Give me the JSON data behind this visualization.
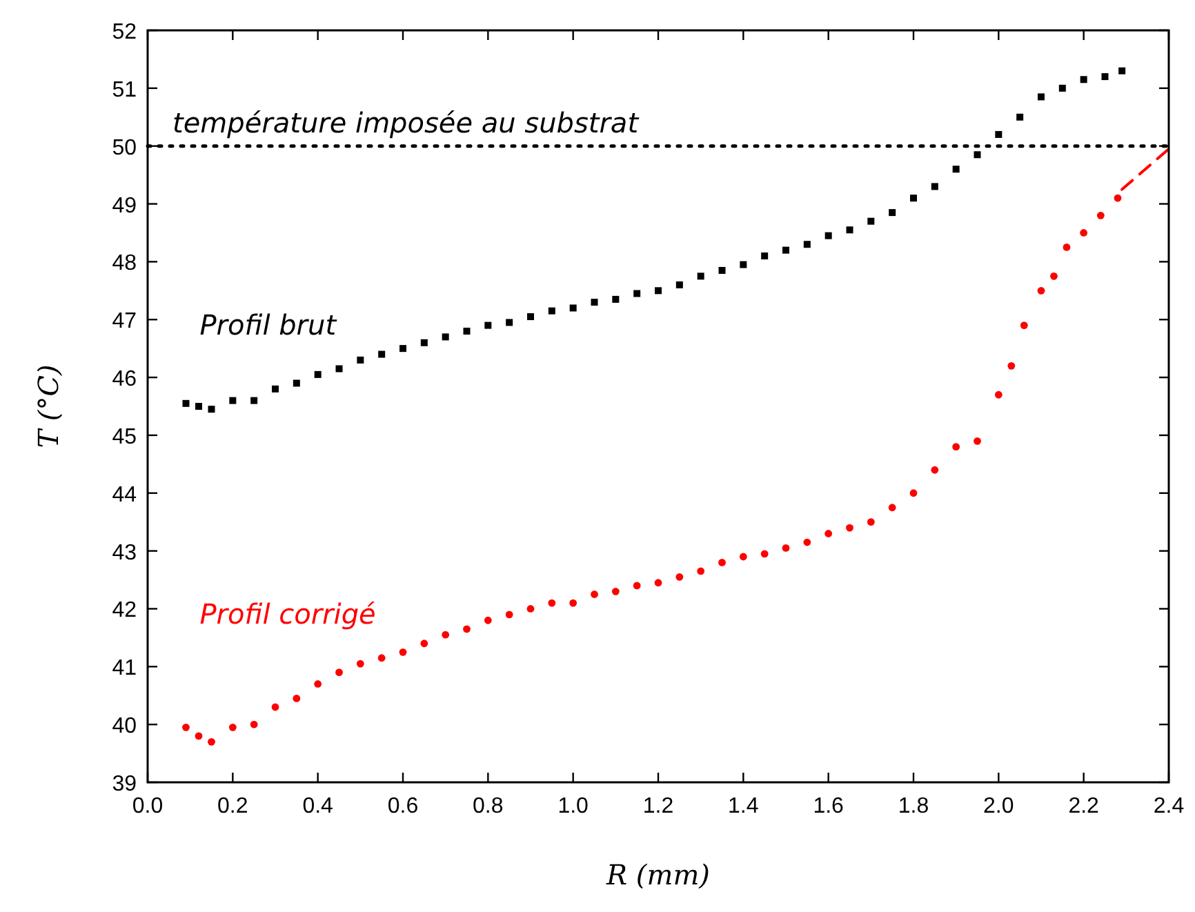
{
  "chart_data": {
    "type": "scatter",
    "xlabel": "R (mm)",
    "ylabel": "T (°C)",
    "xlim": [
      0,
      2.4
    ],
    "ylim": [
      39,
      52
    ],
    "xticks": [
      {
        "value": 0,
        "label": "0.0"
      },
      0.2,
      0.4,
      0.6,
      0.8,
      {
        "value": 1,
        "label": "1.0"
      },
      1.2,
      1.4,
      1.6,
      1.8,
      {
        "value": 2,
        "label": "2.0"
      },
      2.2,
      2.4
    ],
    "yticks": [
      39,
      40,
      41,
      42,
      43,
      44,
      45,
      46,
      47,
      48,
      49,
      50,
      51,
      52
    ],
    "grid": false,
    "ref_lines": [
      {
        "axis": "y",
        "value": 50,
        "label": "température imposée au substrat",
        "color": "#000000",
        "line_style": "dotted"
      }
    ],
    "series": [
      {
        "name": "Profil brut",
        "color": "#000000",
        "marker": "square",
        "x": [
          0.09,
          0.12,
          0.15,
          0.2,
          0.25,
          0.3,
          0.35,
          0.4,
          0.45,
          0.5,
          0.55,
          0.6,
          0.65,
          0.7,
          0.75,
          0.8,
          0.85,
          0.9,
          0.95,
          1.0,
          1.05,
          1.1,
          1.15,
          1.2,
          1.25,
          1.3,
          1.35,
          1.4,
          1.45,
          1.5,
          1.55,
          1.6,
          1.65,
          1.7,
          1.75,
          1.8,
          1.85,
          1.9,
          1.95,
          2.0,
          2.05,
          2.1,
          2.15,
          2.2,
          2.25,
          2.29
        ],
        "values": [
          45.55,
          45.5,
          45.45,
          45.6,
          45.6,
          45.8,
          45.9,
          46.05,
          46.15,
          46.3,
          46.4,
          46.5,
          46.6,
          46.7,
          46.8,
          46.9,
          46.95,
          47.05,
          47.15,
          47.2,
          47.3,
          47.35,
          47.45,
          47.5,
          47.6,
          47.75,
          47.85,
          47.95,
          48.1,
          48.2,
          48.3,
          48.45,
          48.55,
          48.7,
          48.85,
          49.1,
          49.3,
          49.6,
          49.85,
          50.2,
          50.5,
          50.85,
          51.0,
          51.15,
          51.2,
          51.3
        ]
      },
      {
        "name": "Profil corrigé",
        "color": "#ff0000",
        "marker": "circle",
        "x": [
          0.09,
          0.12,
          0.15,
          0.2,
          0.25,
          0.3,
          0.35,
          0.4,
          0.45,
          0.5,
          0.55,
          0.6,
          0.65,
          0.7,
          0.75,
          0.8,
          0.85,
          0.9,
          0.95,
          1.0,
          1.05,
          1.1,
          1.15,
          1.2,
          1.25,
          1.3,
          1.35,
          1.4,
          1.45,
          1.5,
          1.55,
          1.6,
          1.65,
          1.7,
          1.75,
          1.8,
          1.85,
          1.9,
          1.95,
          2.0,
          2.03,
          2.06,
          2.1,
          2.13,
          2.16,
          2.2,
          2.24,
          2.28
        ],
        "values": [
          39.95,
          39.8,
          39.7,
          39.95,
          40.0,
          40.3,
          40.45,
          40.7,
          40.9,
          41.05,
          41.15,
          41.25,
          41.4,
          41.55,
          41.65,
          41.8,
          41.9,
          42.0,
          42.1,
          42.1,
          42.25,
          42.3,
          42.4,
          42.45,
          42.55,
          42.65,
          42.8,
          42.9,
          42.95,
          43.05,
          43.15,
          43.3,
          43.4,
          43.5,
          43.75,
          44.0,
          44.4,
          44.8,
          44.9,
          45.7,
          46.2,
          46.9,
          47.5,
          47.75,
          48.25,
          48.5,
          48.8,
          49.1
        ]
      },
      {
        "type": "line",
        "color": "#ff0000",
        "line_style": "dashed",
        "marker": "none",
        "x": [
          2.29,
          2.4
        ],
        "values": [
          49.25,
          49.95
        ]
      }
    ]
  }
}
